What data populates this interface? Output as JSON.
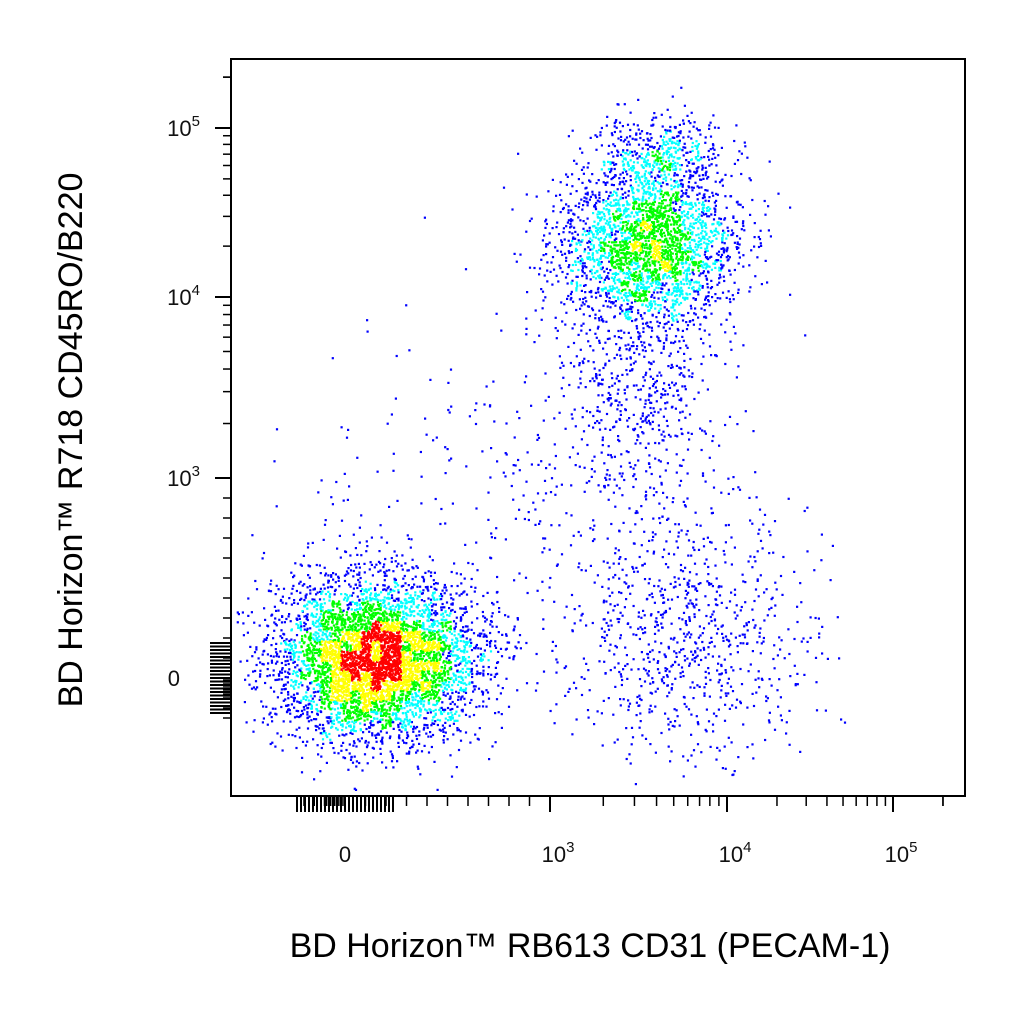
{
  "chart_data": {
    "type": "scatter",
    "subtype": "flow-cytometry-density-pseudocolor",
    "title": "",
    "xlabel": "BD Horizon™ RB613  CD31 (PECAM-1)",
    "ylabel": "BD Horizon™ R718  CD45RO/B220",
    "x_scale": "biexponential",
    "y_scale": "biexponential",
    "xlim": [
      -200,
      200000
    ],
    "ylim": [
      -250,
      180000
    ],
    "grid": false,
    "legend": "none",
    "x_ticks": [
      {
        "value": 0,
        "base": "0",
        "exp": ""
      },
      {
        "value": 1000,
        "base": "10",
        "exp": "3"
      },
      {
        "value": 10000,
        "base": "10",
        "exp": "4"
      },
      {
        "value": 100000,
        "base": "10",
        "exp": "5"
      }
    ],
    "y_ticks": [
      {
        "value": 0,
        "base": "0",
        "exp": ""
      },
      {
        "value": 1000,
        "base": "10",
        "exp": "3"
      },
      {
        "value": 10000,
        "base": "10",
        "exp": "4"
      },
      {
        "value": 100000,
        "base": "10",
        "exp": "5"
      }
    ],
    "density_colors": [
      "#0000ff",
      "#00ffff",
      "#00ff00",
      "#ffff00",
      "#ff0000"
    ],
    "populations": [
      {
        "name": "",
        "center": [
          150,
          100
        ],
        "spread": [
          0.28,
          0.22
        ],
        "count": 5200
      },
      {
        "name": "",
        "center": [
          3500,
          20000
        ],
        "spread": [
          0.24,
          0.22
        ],
        "count": 2600
      },
      {
        "name": "",
        "center": [
          4200,
          70000
        ],
        "spread": [
          0.18,
          0.12
        ],
        "count": 450
      },
      {
        "name": "",
        "center": [
          3000,
          3000
        ],
        "spread": [
          0.22,
          0.35
        ],
        "count": 550
      },
      {
        "name": "",
        "center": [
          6000,
          220
        ],
        "spread": [
          0.35,
          0.35
        ],
        "count": 800
      },
      {
        "name": "",
        "center": [
          800,
          800
        ],
        "spread": [
          0.6,
          0.6
        ],
        "count": 300
      }
    ]
  }
}
